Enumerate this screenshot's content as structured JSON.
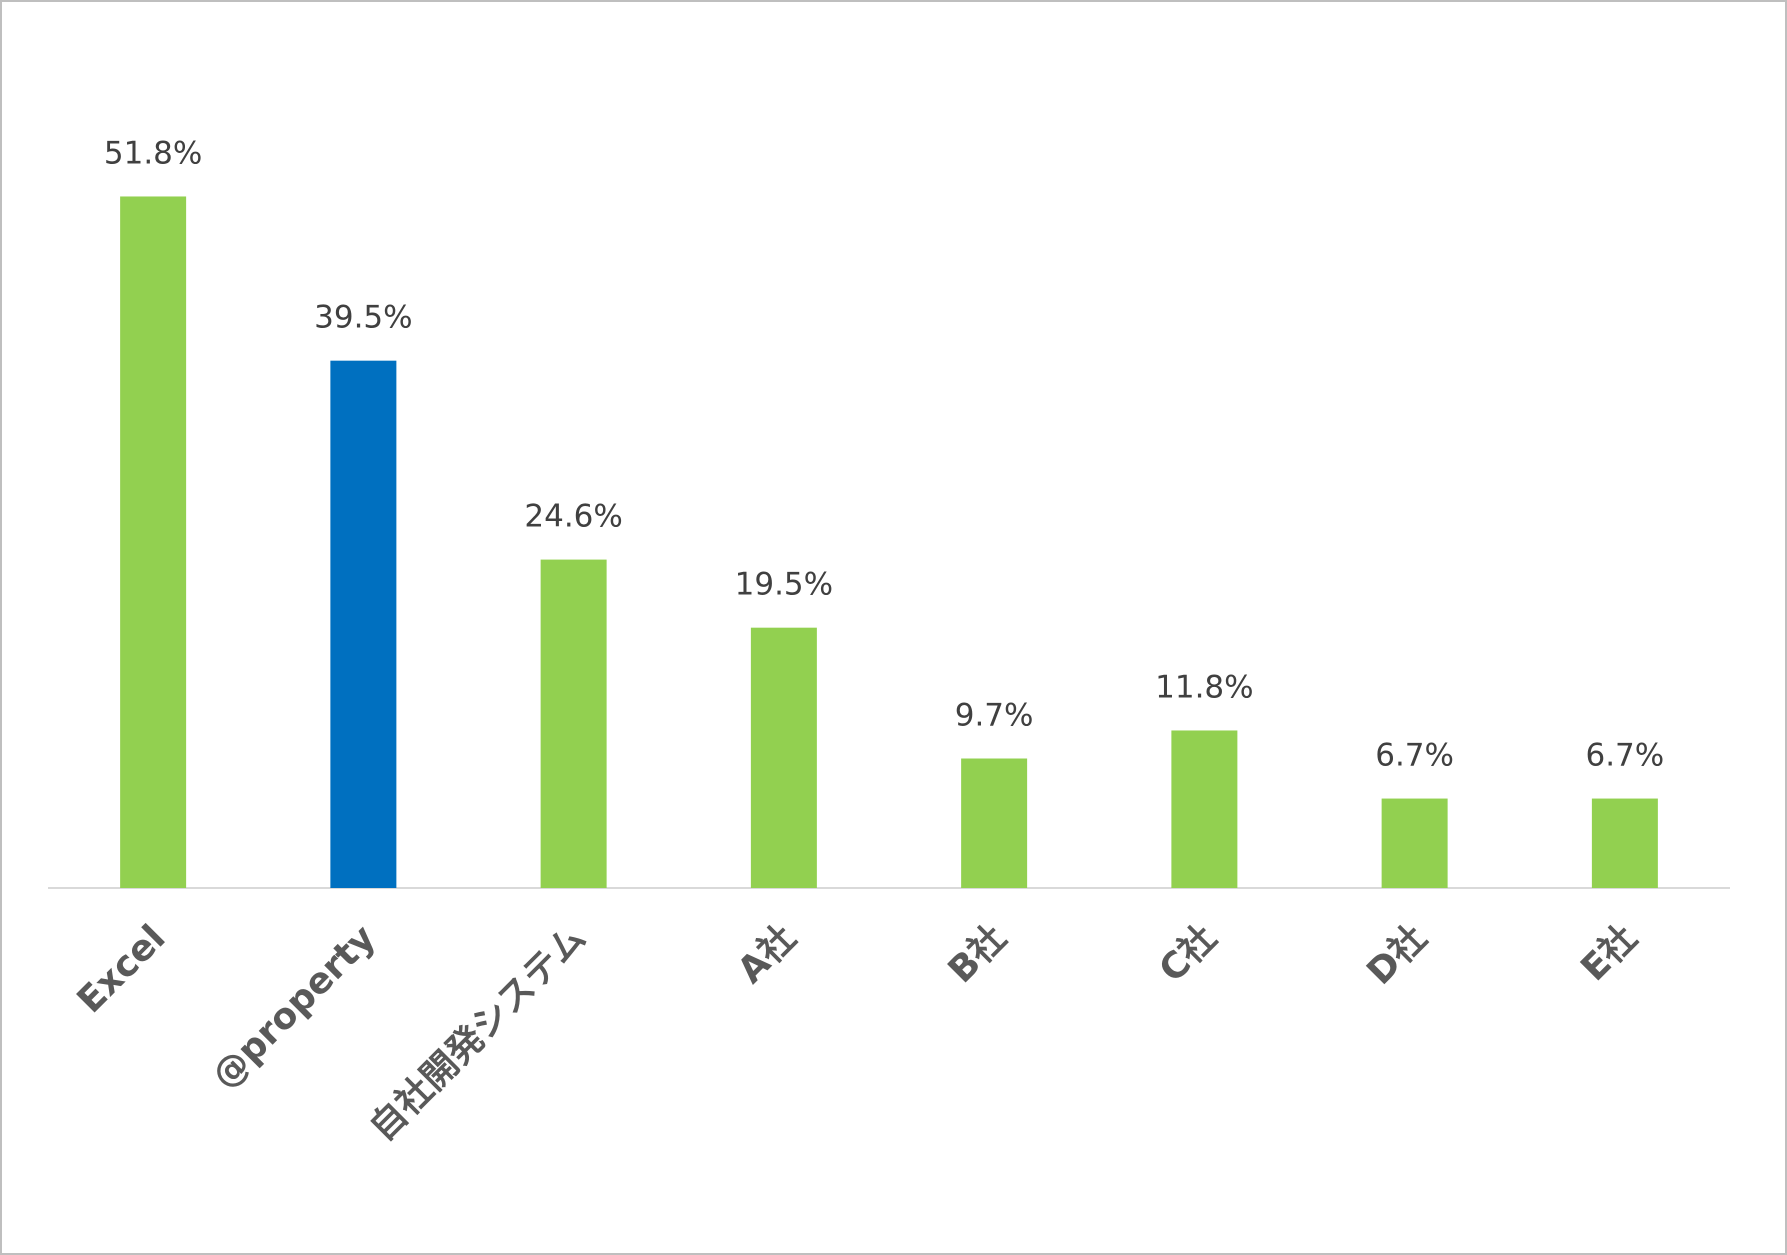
{
  "chart_data": {
    "type": "bar",
    "categories": [
      "Excel",
      "@property",
      "自社開発システム",
      "A社",
      "B社",
      "C社",
      "D社",
      "E社"
    ],
    "values": [
      51.8,
      39.5,
      24.6,
      19.5,
      9.7,
      11.8,
      6.7,
      6.7
    ],
    "value_labels": [
      "51.8%",
      "39.5%",
      "24.6%",
      "19.5%",
      "9.7%",
      "11.8%",
      "6.7%",
      "6.7%"
    ],
    "colors": [
      "#92d050",
      "#0070c0",
      "#92d050",
      "#92d050",
      "#92d050",
      "#92d050",
      "#92d050",
      "#92d050"
    ],
    "ylim": [
      0,
      60
    ]
  }
}
